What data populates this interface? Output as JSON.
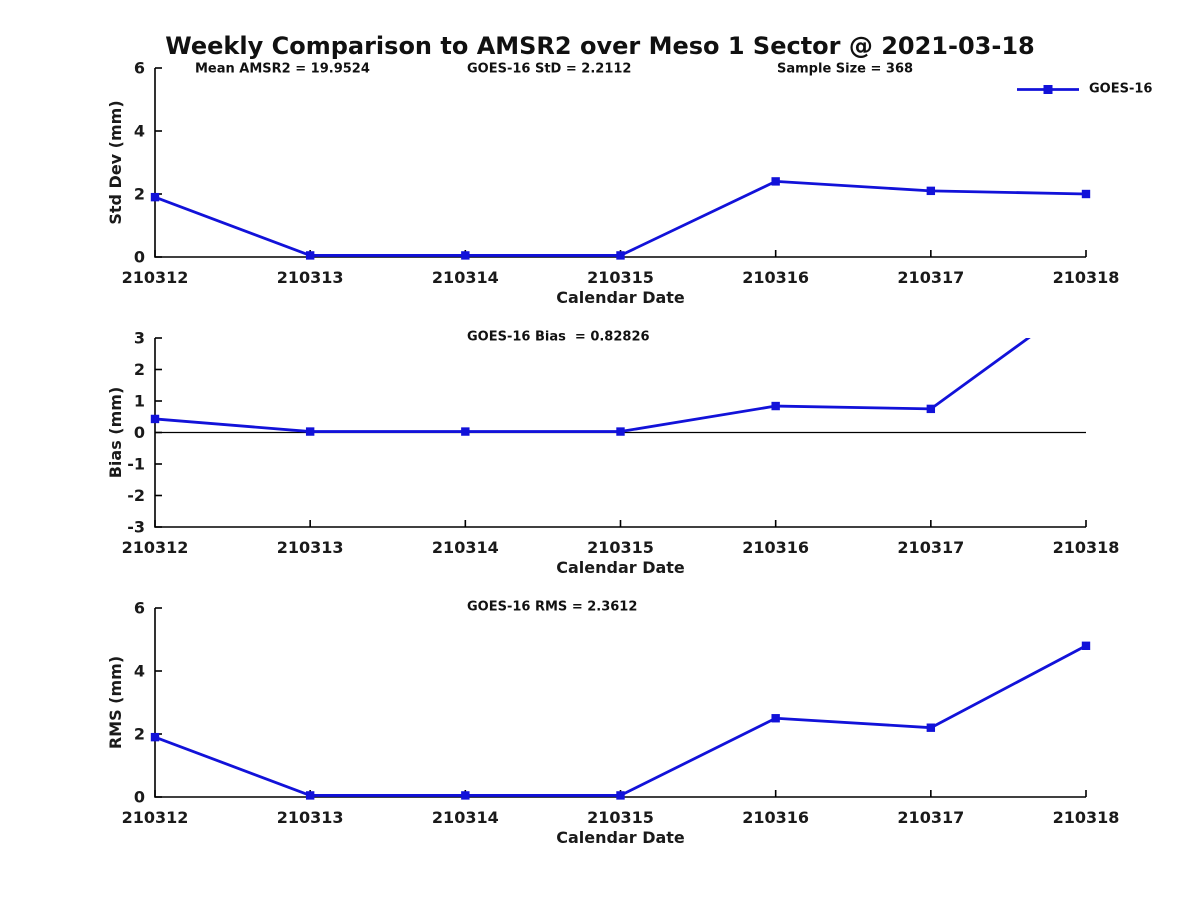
{
  "title": "Weekly Comparison to AMSR2 over Meso 1 Sector @ 2021-03-18",
  "annotations": {
    "mean_amsr2": "Mean AMSR2 = 19.9524",
    "goes16_std": "GOES-16 StD = 2.2112",
    "sample_size": "Sample Size = 368",
    "goes16_bias": "GOES-16 Bias  = 0.82826",
    "goes16_rms": "GOES-16 RMS = 2.3612"
  },
  "legend": {
    "label": "GOES-16",
    "position": "top-right"
  },
  "colors": {
    "line": "#1212d9",
    "axis": "#000000",
    "text": "#1a1a1a",
    "background": "#ffffff"
  },
  "chart_data": [
    {
      "type": "line",
      "title": "",
      "ylabel": "Std Dev (mm)",
      "xlabel": "Calendar Date",
      "categories": [
        "210312",
        "210313",
        "210314",
        "210315",
        "210316",
        "210317",
        "210318"
      ],
      "series": [
        {
          "name": "GOES-16",
          "values": [
            1.9,
            0.05,
            0.05,
            0.05,
            2.4,
            2.1,
            2.0
          ]
        }
      ],
      "ylim": [
        0,
        6
      ],
      "yticks": [
        0,
        2,
        4,
        6
      ],
      "grid": false,
      "zero_line": false,
      "marker": "square"
    },
    {
      "type": "line",
      "title": "",
      "ylabel": "Bias (mm)",
      "xlabel": "Calendar Date",
      "categories": [
        "210312",
        "210313",
        "210314",
        "210315",
        "210316",
        "210317",
        "210318"
      ],
      "series": [
        {
          "name": "GOES-16",
          "values": [
            0.43,
            0.03,
            0.03,
            0.03,
            0.84,
            0.75,
            4.33
          ]
        }
      ],
      "ylim": [
        -3,
        3
      ],
      "yticks": [
        -3,
        -2,
        -1,
        0,
        1,
        2,
        3
      ],
      "grid": false,
      "zero_line": true,
      "marker": "square",
      "clip_note": "last value exceeds y-axis; line exits top of plot between 210317 and 210318"
    },
    {
      "type": "line",
      "title": "",
      "ylabel": "RMS (mm)",
      "xlabel": "Calendar Date",
      "categories": [
        "210312",
        "210313",
        "210314",
        "210315",
        "210316",
        "210317",
        "210318"
      ],
      "series": [
        {
          "name": "GOES-16",
          "values": [
            1.9,
            0.05,
            0.05,
            0.05,
            2.5,
            2.2,
            4.8
          ]
        }
      ],
      "ylim": [
        0,
        6
      ],
      "yticks": [
        0,
        2,
        4,
        6
      ],
      "grid": false,
      "zero_line": false,
      "marker": "square"
    }
  ]
}
